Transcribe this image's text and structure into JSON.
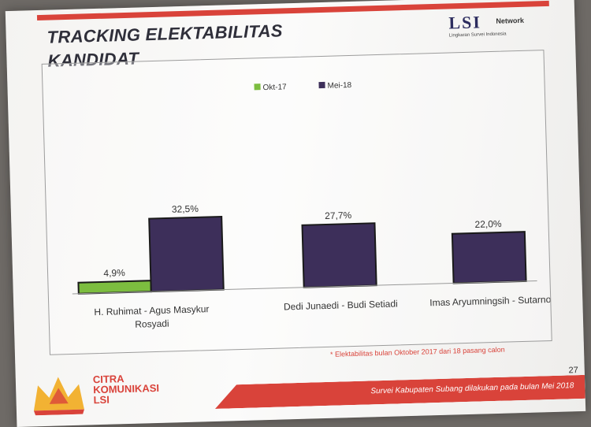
{
  "slide": {
    "title_line1": "TRACKING ELEKTABILITAS",
    "title_line2": "KANDIDAT",
    "logo_mark": "LSI",
    "logo_network": "Network",
    "logo_subtitle": "Lingkaran Survei Indonesia",
    "footnote": "* Elektabilitas bulan Oktober 2017 dari 18 pasang calon",
    "brand_lines": [
      "CITRA",
      "KOMUNIKASI",
      "LSI"
    ],
    "footer_text": "Survei Kabupaten Subang dilakukan pada bulan Mei 2018",
    "page_number": "27"
  },
  "colors": {
    "accent": "#d9433a",
    "okt17": "#7cbd3f",
    "mei18": "#3d2f5a"
  },
  "chart_data": {
    "type": "bar",
    "title": "",
    "categories": [
      [
        "H. Ruhimat - Agus Masykur",
        "Rosyadi"
      ],
      [
        "Dedi Junaedi - Budi Setiadi"
      ],
      [
        "Imas Aryumningsih - Sutarno"
      ]
    ],
    "series": [
      {
        "name": "Okt-17",
        "values": [
          4.9,
          null,
          null
        ],
        "labels": [
          "4,9%",
          "",
          ""
        ],
        "color": "#7cbd3f"
      },
      {
        "name": "Mei-18",
        "values": [
          32.5,
          27.7,
          22.0
        ],
        "labels": [
          "32,5%",
          "27,7%",
          "22,0%"
        ],
        "color": "#3d2f5a"
      }
    ],
    "ylim": [
      0,
      100
    ],
    "legend": "top-center",
    "grid": false
  }
}
